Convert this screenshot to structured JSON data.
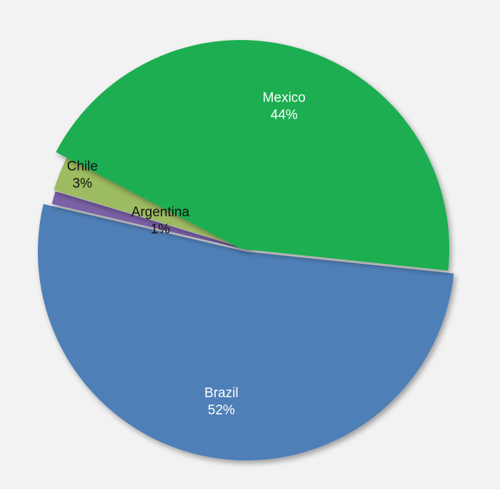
{
  "chart_data": {
    "type": "pie",
    "exploded": true,
    "shadow": true,
    "title": "",
    "slices": [
      {
        "label": "Brazil",
        "percent_label": "52%",
        "value": 52,
        "color": "#4f7fb7",
        "text_color": "#ffffff"
      },
      {
        "label": "Argentina",
        "percent_label": "1%",
        "value": 1,
        "color": "#7a60a6",
        "text_color": "#111111"
      },
      {
        "label": "Chile",
        "percent_label": "3%",
        "value": 3,
        "color": "#9dbb61",
        "text_color": "#111111"
      },
      {
        "label": "Mexico",
        "percent_label": "44%",
        "value": 44,
        "color": "#1fae51",
        "text_color": "#ffffff"
      }
    ]
  }
}
